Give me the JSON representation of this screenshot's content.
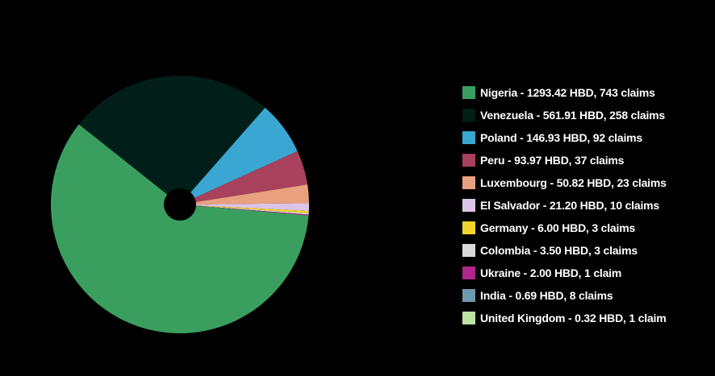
{
  "chart_data": {
    "type": "pie",
    "title": "",
    "legend_position": "right",
    "donut_hole": true,
    "series": [
      {
        "name": "",
        "slices": [
          {
            "label": "Nigeria - 1293.42 HBD, 743 claims",
            "category": "Nigeria",
            "value": 1293.42,
            "claims": 743,
            "color": "#3a9e5f"
          },
          {
            "label": "Venezuela - 561.91 HBD, 258 claims",
            "category": "Venezuela",
            "value": 561.91,
            "claims": 258,
            "color": "#021e19"
          },
          {
            "label": "Poland - 146.93 HBD, 92 claims",
            "category": "Poland",
            "value": 146.93,
            "claims": 92,
            "color": "#3aa7d3"
          },
          {
            "label": "Peru - 93.97 HBD, 37 claims",
            "category": "Peru",
            "value": 93.97,
            "claims": 37,
            "color": "#a7415c"
          },
          {
            "label": "Luxembourg - 50.82 HBD, 23 claims",
            "category": "Luxembourg",
            "value": 50.82,
            "claims": 23,
            "color": "#e8a07e"
          },
          {
            "label": "El Salvador - 21.20 HBD, 10 claims",
            "category": "El Salvador",
            "value": 21.2,
            "claims": 10,
            "color": "#dcc4e6"
          },
          {
            "label": "Germany - 6.00 HBD, 3 claims",
            "category": "Germany",
            "value": 6.0,
            "claims": 3,
            "color": "#f3d42b"
          },
          {
            "label": "Colombia - 3.50 HBD, 3 claims",
            "category": "Colombia",
            "value": 3.5,
            "claims": 3,
            "color": "#d9d9d9"
          },
          {
            "label": "Ukraine - 2.00 HBD, 1 claim",
            "category": "Ukraine",
            "value": 2.0,
            "claims": 1,
            "color": "#b0268c"
          },
          {
            "label": "India - 0.69 HBD, 8 claims",
            "category": "India",
            "value": 0.69,
            "claims": 8,
            "color": "#6f99b0"
          },
          {
            "label": "United Kingdom - 0.32 HBD, 1 claim",
            "category": "United Kingdom",
            "value": 0.32,
            "claims": 1,
            "color": "#bde3a2"
          }
        ]
      }
    ]
  }
}
